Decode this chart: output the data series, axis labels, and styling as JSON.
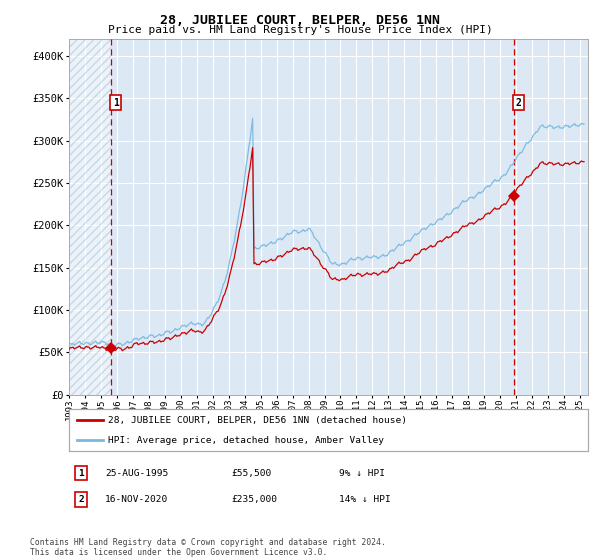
{
  "title": "28, JUBILEE COURT, BELPER, DE56 1NN",
  "subtitle": "Price paid vs. HM Land Registry's House Price Index (HPI)",
  "legend_line1": "28, JUBILEE COURT, BELPER, DE56 1NN (detached house)",
  "legend_line2": "HPI: Average price, detached house, Amber Valley",
  "annotation1_label": "1",
  "annotation1_date": "25-AUG-1995",
  "annotation1_price": "£55,500",
  "annotation1_hpi": "9% ↓ HPI",
  "annotation2_label": "2",
  "annotation2_date": "16-NOV-2020",
  "annotation2_price": "£235,000",
  "annotation2_hpi": "14% ↓ HPI",
  "sale1_year": 1995.648,
  "sale1_price": 55500,
  "sale2_year": 2020.873,
  "sale2_price": 235000,
  "hpi_color": "#7ab8e0",
  "property_color": "#cc0000",
  "background_color": "#dce9f5",
  "grid_color": "#ffffff",
  "dashed_line_color": "#cc0000",
  "ylim": [
    0,
    420000
  ],
  "xlim_start": 1993.0,
  "xlim_end": 2025.5,
  "footer": "Contains HM Land Registry data © Crown copyright and database right 2024.\nThis data is licensed under the Open Government Licence v3.0."
}
